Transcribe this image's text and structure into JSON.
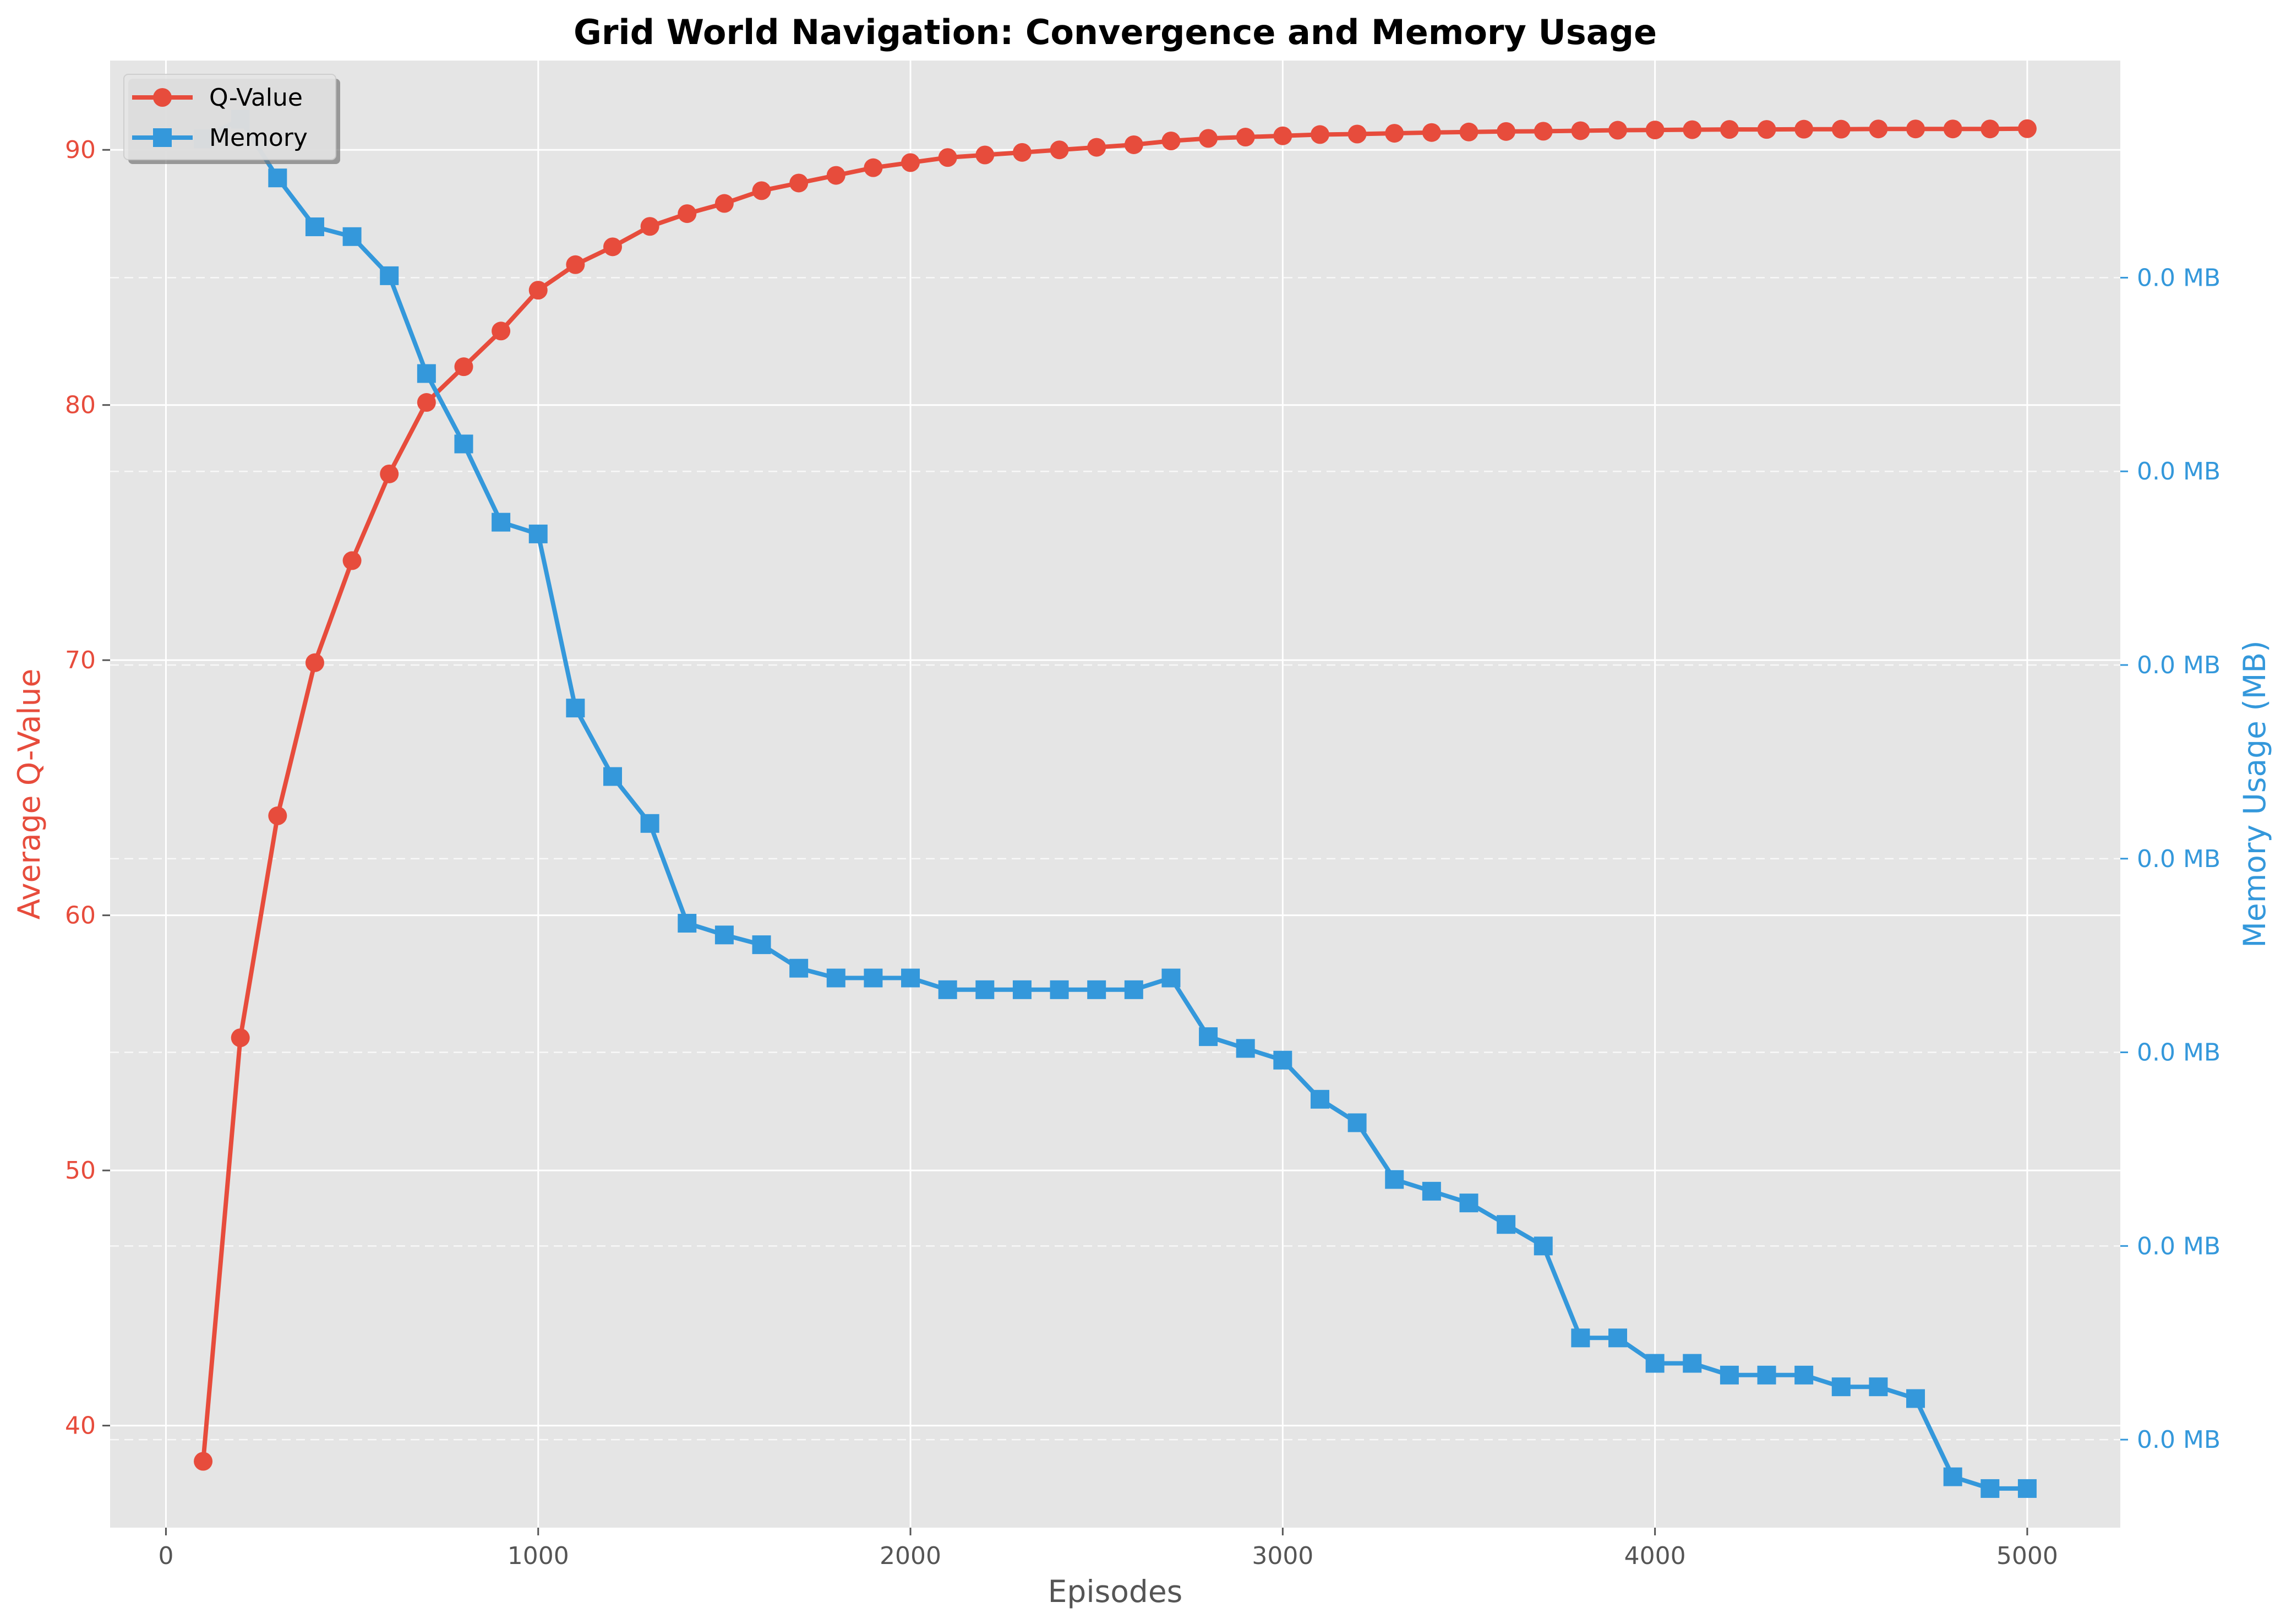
{
  "chart_data": {
    "type": "line",
    "title": "Grid World Navigation: Convergence and Memory Usage",
    "xlabel": "Episodes",
    "ylabel_left": "Average Q-Value",
    "ylabel_right": "Memory Usage (MB)",
    "xlim": [
      -150,
      5250
    ],
    "ylim_left": [
      36.0,
      93.5
    ],
    "x_ticks": [
      0,
      1000,
      2000,
      3000,
      4000,
      5000
    ],
    "y_ticks_left": [
      40,
      50,
      60,
      70,
      80,
      90
    ],
    "right_tick_labels": [
      "0.0 MB",
      "0.0 MB",
      "0.0 MB",
      "0.0 MB",
      "0.0 MB",
      "0.0 MB",
      "0.0 MB"
    ],
    "grid": true,
    "legend_position": "top-left",
    "colors": {
      "qvalue": "#e74c3c",
      "memory": "#3498db",
      "background": "#e5e5e5"
    },
    "x": [
      100,
      200,
      300,
      400,
      500,
      600,
      700,
      800,
      900,
      1000,
      1100,
      1200,
      1300,
      1400,
      1500,
      1600,
      1700,
      1800,
      1900,
      2000,
      2100,
      2200,
      2300,
      2400,
      2500,
      2600,
      2700,
      2800,
      2900,
      3000,
      3100,
      3200,
      3300,
      3400,
      3500,
      3600,
      3700,
      3800,
      3900,
      4000,
      4100,
      4200,
      4300,
      4400,
      4500,
      4600,
      4700,
      4800,
      4900,
      5000
    ],
    "series": [
      {
        "name": "Q-Value",
        "axis": "left",
        "marker": "circle",
        "values": [
          38.6,
          55.2,
          63.9,
          69.9,
          73.9,
          77.3,
          80.1,
          81.5,
          82.9,
          84.5,
          85.5,
          86.2,
          87.0,
          87.5,
          87.9,
          88.4,
          88.7,
          89.0,
          89.3,
          89.5,
          89.7,
          89.8,
          89.9,
          90.0,
          90.1,
          90.2,
          90.35,
          90.45,
          90.5,
          90.55,
          90.6,
          90.62,
          90.65,
          90.68,
          90.7,
          90.72,
          90.73,
          90.75,
          90.77,
          90.78,
          90.79,
          90.8,
          90.8,
          90.81,
          90.81,
          90.82,
          90.82,
          90.82,
          90.82,
          90.83
        ]
      },
      {
        "name": "Memory",
        "axis": "right",
        "marker": "square",
        "values": [
          0.00099,
          0.001,
          0.00097,
          0.000945,
          0.00094,
          0.00092,
          0.00087,
          0.000834,
          0.000794,
          0.000788,
          0.000699,
          0.000664,
          0.00064,
          0.000589,
          0.000583,
          0.000578,
          0.000566,
          0.000561,
          0.000561,
          0.000561,
          0.000555,
          0.000555,
          0.000555,
          0.000555,
          0.000555,
          0.000555,
          0.000561,
          0.000531,
          0.000525,
          0.000519,
          0.000499,
          0.000487,
          0.000458,
          0.000452,
          0.000446,
          0.000435,
          0.000424,
          0.000377,
          0.000377,
          0.000364,
          0.000364,
          0.000358,
          0.000358,
          0.000358,
          0.000352,
          0.000352,
          0.000346,
          0.000306,
          0.0003,
          0.0003
        ]
      }
    ]
  }
}
